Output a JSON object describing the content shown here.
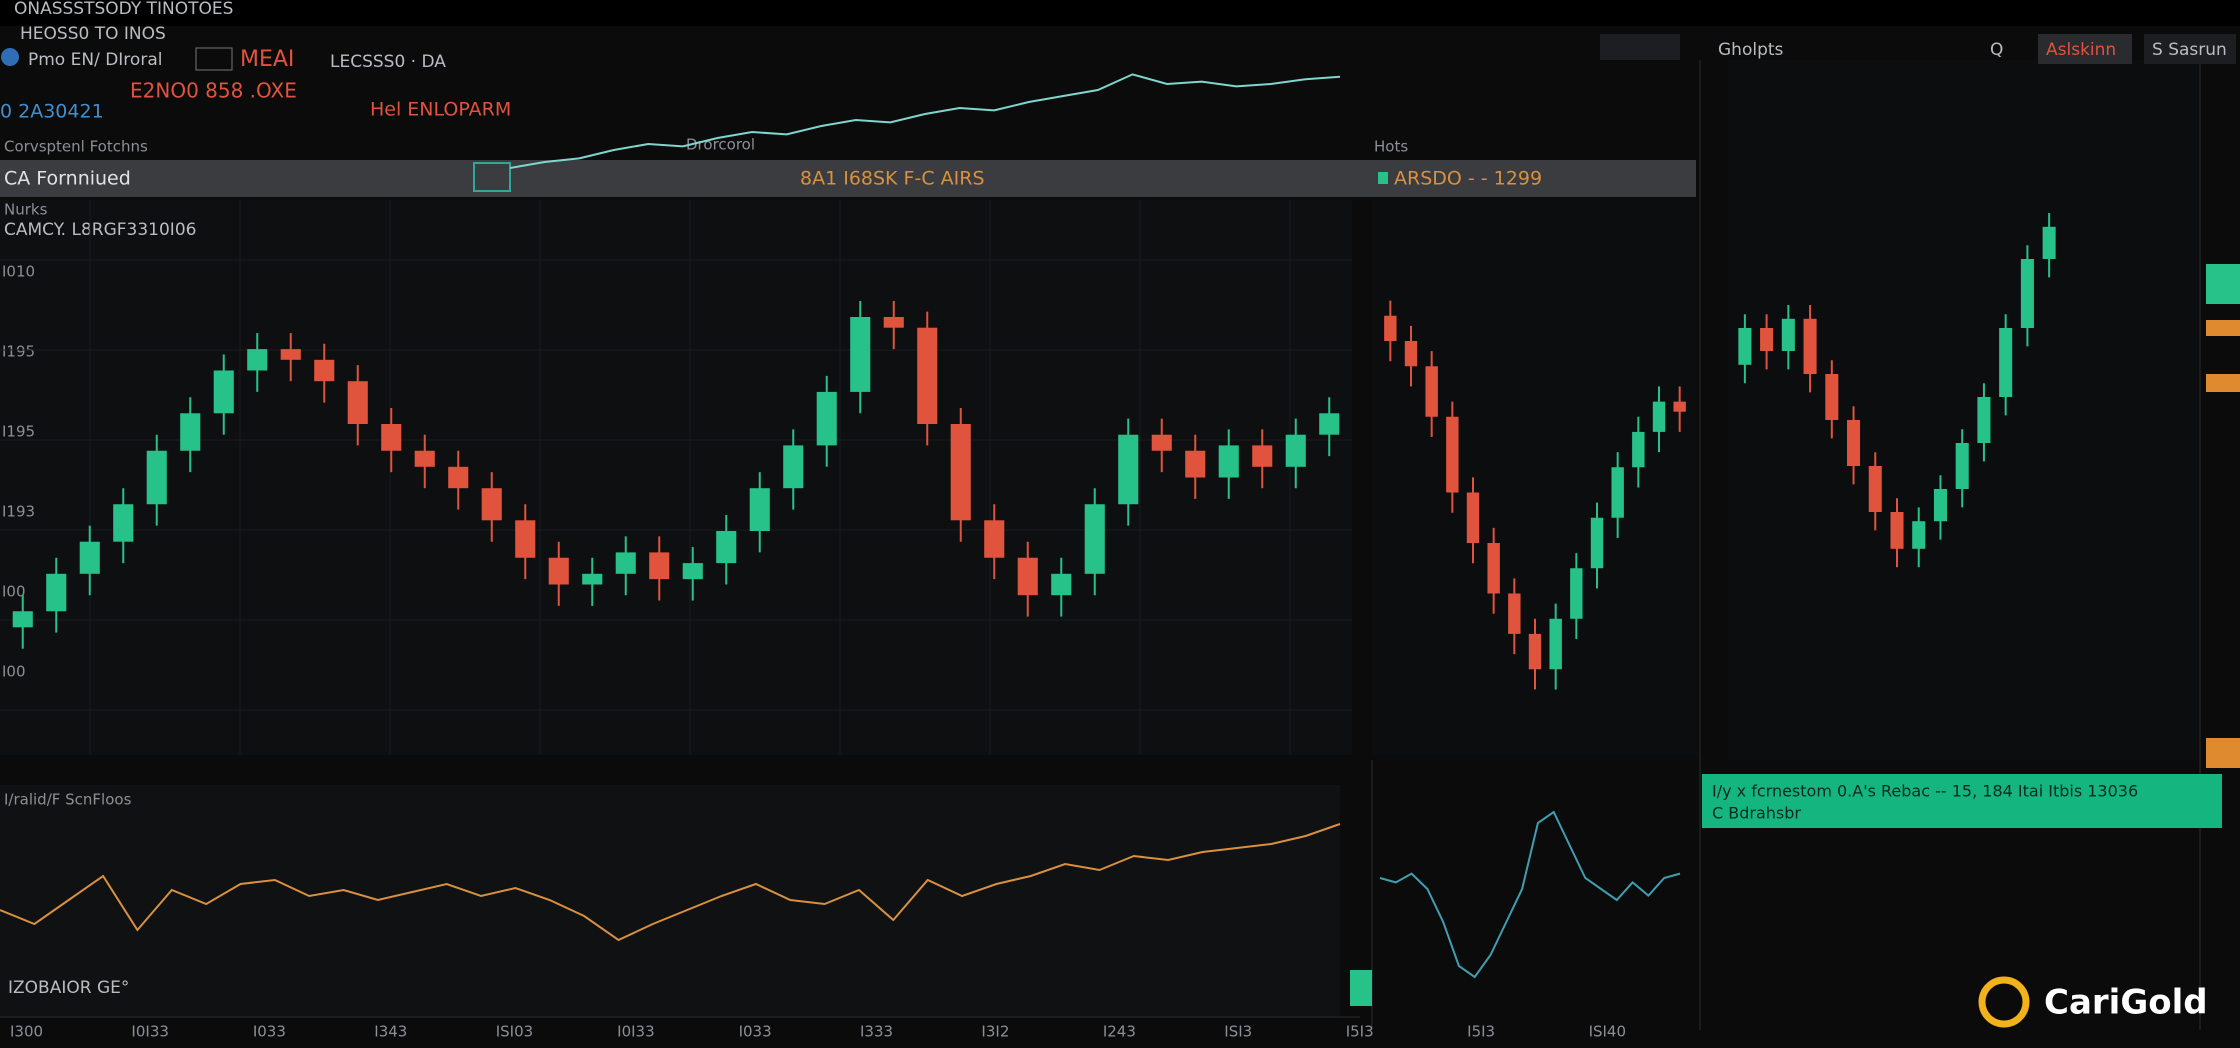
{
  "texts": {
    "window_title": "ONASSSTSODY TINOTOES",
    "header_1": "HEOSS0 TO INOS",
    "header_2": "Pmo  EN/ DIroral",
    "header_3": "MEAI",
    "header_4": "LECSSS0 · DA",
    "header_5": "E2NO0  858 .OXE",
    "header_6": "0 2A30421",
    "header_7": "Hel ENLOPARM",
    "section_left": "Corvsptenl Fotchns",
    "section_mid": "Drorcorol",
    "section_right": "Hots",
    "band_left": "CA Fornniued",
    "band_mid": "8A1 I68SK F-C AIRS",
    "band_right": "ARSDO - - 1299",
    "chart_label_1": "Nurks",
    "chart_label_2": "CAMCY. L8RGF3310I06",
    "top_right_1": "Gholpts",
    "top_right_2": "Aslskinn",
    "top_right_3": "S Sasrun",
    "top_right_search": "Q",
    "left_ticks": [
      "I010",
      "I195",
      "I195",
      "I193",
      "I00",
      "I00"
    ],
    "bottom_panel_title": "I/ralid/F ScnFloos",
    "bottom_panel_note": "IZOBAIOR GE°",
    "bottom_ticks": [
      "I300",
      "I0I33",
      "I033",
      "I343",
      "ISI03",
      "I0I33",
      "I033",
      "I333",
      "I3I2",
      "I243",
      "ISI3",
      "I5I3",
      "I5I3",
      "ISI40"
    ],
    "banner_1": "I/y x fcrnestom 0.A's Rebac -- 15, 184 Itai Itbis 13036",
    "banner_2": "C Bdrahsbr",
    "logo": "CariGold"
  },
  "chart_data": [
    {
      "type": "candlestick",
      "up_color": "#26c28a",
      "down_color": "#e0533d",
      "ylim": [
        0,
        100
      ],
      "open": [
        22,
        25,
        32,
        38,
        45,
        55,
        62,
        70,
        74,
        72,
        68,
        60,
        55,
        52,
        48,
        42,
        35,
        30,
        32,
        36,
        31,
        34,
        40,
        48,
        56,
        66,
        80,
        78,
        60,
        42,
        35,
        28,
        32,
        45,
        58,
        55,
        50,
        56,
        52,
        58
      ],
      "high": [
        28,
        35,
        41,
        48,
        58,
        65,
        73,
        77,
        77,
        75,
        71,
        63,
        58,
        55,
        51,
        45,
        38,
        35,
        39,
        39,
        37,
        43,
        51,
        59,
        69,
        83,
        83,
        81,
        63,
        45,
        38,
        35,
        48,
        61,
        61,
        58,
        59,
        59,
        61,
        65
      ],
      "low": [
        18,
        21,
        28,
        34,
        41,
        51,
        58,
        66,
        68,
        64,
        56,
        51,
        48,
        44,
        38,
        31,
        26,
        26,
        28,
        27,
        27,
        30,
        36,
        44,
        52,
        62,
        74,
        56,
        38,
        31,
        24,
        24,
        28,
        41,
        51,
        46,
        46,
        48,
        48,
        54
      ],
      "close": [
        25,
        32,
        38,
        45,
        55,
        62,
        70,
        74,
        72,
        68,
        60,
        55,
        52,
        48,
        42,
        35,
        30,
        32,
        36,
        31,
        34,
        40,
        48,
        56,
        66,
        80,
        78,
        60,
        42,
        35,
        28,
        32,
        45,
        58,
        55,
        50,
        56,
        52,
        58,
        62
      ]
    },
    {
      "type": "candlestick",
      "up_color": "#26c28a",
      "down_color": "#e0533d",
      "ylim": [
        0,
        100
      ],
      "open": [
        85,
        80,
        75,
        65,
        50,
        40,
        30,
        22,
        15,
        25,
        35,
        45,
        55,
        62,
        68
      ],
      "high": [
        88,
        83,
        78,
        68,
        53,
        43,
        33,
        25,
        28,
        38,
        48,
        58,
        65,
        71,
        71
      ],
      "low": [
        76,
        71,
        61,
        46,
        36,
        26,
        18,
        11,
        11,
        21,
        31,
        41,
        51,
        58,
        62
      ],
      "close": [
        80,
        75,
        65,
        50,
        40,
        30,
        22,
        15,
        25,
        35,
        45,
        55,
        62,
        68,
        66
      ]
    },
    {
      "type": "candlestick",
      "up_color": "#26c28a",
      "down_color": "#e0533d",
      "ylim": [
        0,
        100
      ],
      "open": [
        62,
        70,
        65,
        72,
        60,
        50,
        40,
        30,
        22,
        28,
        35,
        45,
        55,
        70,
        85
      ],
      "high": [
        73,
        73,
        75,
        75,
        63,
        53,
        43,
        33,
        31,
        38,
        48,
        58,
        73,
        88,
        95
      ],
      "low": [
        58,
        61,
        61,
        56,
        46,
        36,
        26,
        18,
        18,
        24,
        31,
        41,
        51,
        66,
        81
      ],
      "close": [
        70,
        65,
        72,
        60,
        50,
        40,
        30,
        22,
        28,
        35,
        45,
        55,
        70,
        85,
        92
      ]
    },
    {
      "type": "line",
      "color": "#d9903f",
      "ylim": [
        0,
        100
      ],
      "values": [
        45,
        38,
        50,
        62,
        35,
        55,
        48,
        58,
        60,
        52,
        55,
        50,
        54,
        58,
        52,
        56,
        50,
        42,
        30,
        38,
        45,
        52,
        58,
        50,
        48,
        55,
        40,
        60,
        52,
        58,
        62,
        68,
        65,
        72,
        70,
        74,
        76,
        78,
        82,
        88
      ]
    },
    {
      "type": "line",
      "color": "#7fd6cc",
      "ylim": [
        0,
        100
      ],
      "values": [
        10,
        15,
        18,
        25,
        30,
        28,
        35,
        40,
        38,
        45,
        50,
        48,
        55,
        60,
        58,
        65,
        70,
        75,
        88,
        80,
        82,
        78,
        80,
        84,
        86
      ]
    },
    {
      "type": "line",
      "color": "#3f9fb0",
      "ylim": [
        0,
        100
      ],
      "values": [
        60,
        58,
        62,
        55,
        40,
        20,
        15,
        25,
        40,
        55,
        85,
        90,
        75,
        60,
        55,
        50,
        58,
        52,
        60,
        62
      ]
    }
  ]
}
